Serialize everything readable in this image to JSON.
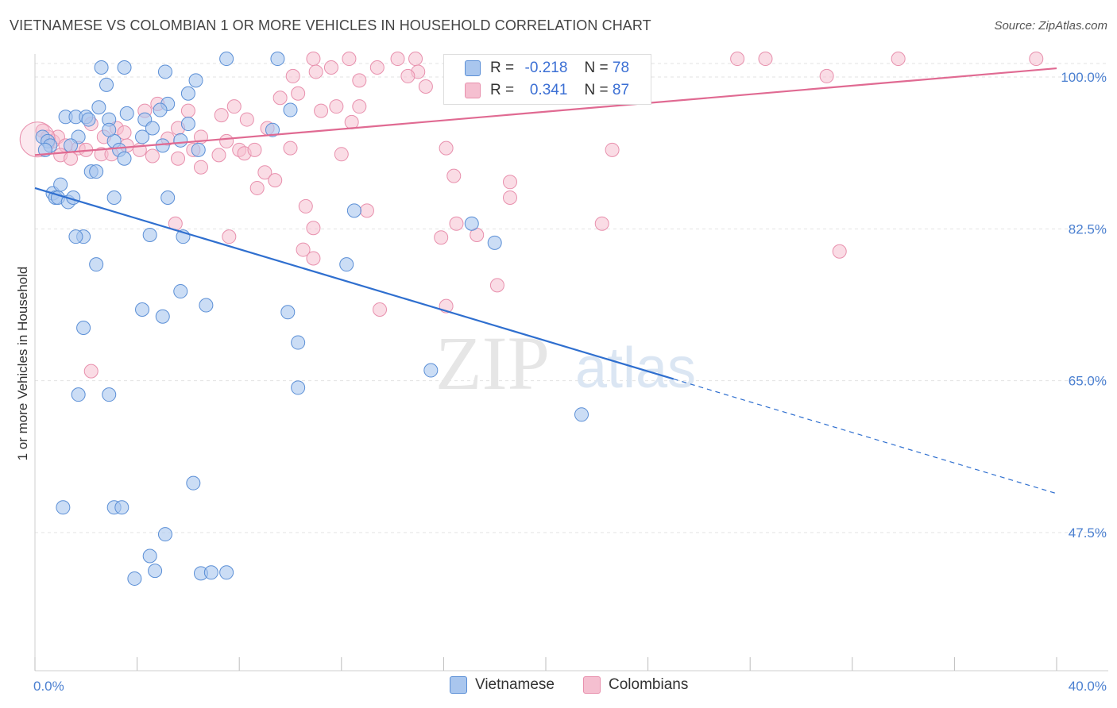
{
  "header": {
    "title": "VIETNAMESE VS COLOMBIAN 1 OR MORE VEHICLES IN HOUSEHOLD CORRELATION CHART",
    "source": "Source: ZipAtlas.com"
  },
  "watermark": {
    "zip": "ZIP",
    "atlas": "atlas"
  },
  "legend_top": {
    "rows": [
      {
        "r_label": "R =",
        "r_value": "-0.218",
        "n_label": "N =",
        "n_value": "78"
      },
      {
        "r_label": "R =",
        "r_value": "0.341",
        "n_label": "N =",
        "n_value": "87"
      }
    ]
  },
  "legend_bottom": {
    "vietnamese": "Vietnamese",
    "colombians": "Colombians"
  },
  "colors": {
    "vietnamese_fill": "#a9c6ee",
    "vietnamese_stroke": "#5b8fd6",
    "vietnamese_line": "#2f6fcf",
    "colombians_fill": "#f5bfd0",
    "colombians_stroke": "#e890ad",
    "colombians_line": "#e06a92",
    "tick_text": "#4a7fd0",
    "grid": "#e3e3e3"
  },
  "chart_data": {
    "type": "scatter",
    "title": "VIETNAMESE VS COLOMBIAN 1 OR MORE VEHICLES IN HOUSEHOLD CORRELATION CHART",
    "xlabel": "",
    "ylabel": "1 or more Vehicles in Household",
    "xlim": [
      0,
      40
    ],
    "ylim": [
      33,
      102
    ],
    "x_tick_labels": [
      "0.0%",
      "40.0%"
    ],
    "y_ticks": [
      100,
      82.5,
      65,
      47.5
    ],
    "y_tick_labels": [
      "100.0%",
      "82.5%",
      "65.0%",
      "47.5%"
    ],
    "grid": true,
    "legend_position": "top-center",
    "series": [
      {
        "name": "Vietnamese",
        "r": -0.218,
        "n": 78,
        "trend": {
          "x": [
            0,
            25,
            40
          ],
          "y": [
            87.2,
            65.2,
            52.0
          ],
          "solid_until_x": 25
        },
        "points": [
          [
            0.3,
            93.1
          ],
          [
            0.5,
            92.6
          ],
          [
            0.6,
            92.1
          ],
          [
            0.4,
            91.6
          ],
          [
            0.7,
            86.6
          ],
          [
            0.8,
            86.1
          ],
          [
            1.0,
            87.6
          ],
          [
            0.9,
            86.1
          ],
          [
            1.3,
            85.6
          ],
          [
            1.5,
            86.1
          ],
          [
            1.2,
            95.4
          ],
          [
            1.6,
            95.4
          ],
          [
            2.0,
            95.4
          ],
          [
            2.1,
            95.1
          ],
          [
            1.7,
            93.1
          ],
          [
            1.4,
            92.1
          ],
          [
            2.2,
            89.1
          ],
          [
            2.6,
            101.1
          ],
          [
            2.8,
            99.1
          ],
          [
            3.5,
            101.1
          ],
          [
            2.5,
            96.5
          ],
          [
            2.9,
            95.1
          ],
          [
            3.6,
            95.8
          ],
          [
            4.3,
            95.1
          ],
          [
            4.6,
            94.1
          ],
          [
            5.2,
            96.9
          ],
          [
            4.9,
            96.2
          ],
          [
            6.0,
            98.1
          ],
          [
            5.1,
            100.6
          ],
          [
            6.3,
            99.6
          ],
          [
            6.0,
            94.6
          ],
          [
            5.7,
            92.7
          ],
          [
            5.0,
            92.1
          ],
          [
            6.4,
            91.6
          ],
          [
            4.2,
            93.1
          ],
          [
            3.1,
            92.6
          ],
          [
            2.9,
            93.9
          ],
          [
            3.3,
            91.6
          ],
          [
            3.5,
            90.6
          ],
          [
            2.4,
            89.1
          ],
          [
            7.5,
            102.1
          ],
          [
            9.5,
            102.1
          ],
          [
            9.3,
            93.9
          ],
          [
            10.0,
            96.2
          ],
          [
            1.9,
            81.6
          ],
          [
            1.6,
            81.6
          ],
          [
            4.5,
            81.8
          ],
          [
            5.8,
            81.6
          ],
          [
            3.1,
            86.1
          ],
          [
            5.2,
            86.1
          ],
          [
            12.5,
            84.6
          ],
          [
            17.1,
            83.1
          ],
          [
            18.0,
            80.9
          ],
          [
            12.2,
            78.4
          ],
          [
            2.4,
            78.4
          ],
          [
            4.2,
            73.2
          ],
          [
            5.0,
            72.4
          ],
          [
            5.7,
            75.3
          ],
          [
            6.7,
            73.7
          ],
          [
            9.9,
            72.9
          ],
          [
            1.9,
            71.1
          ],
          [
            10.3,
            69.4
          ],
          [
            15.5,
            66.2
          ],
          [
            10.3,
            64.2
          ],
          [
            1.7,
            63.4
          ],
          [
            2.9,
            63.4
          ],
          [
            21.4,
            61.1
          ],
          [
            6.2,
            53.2
          ],
          [
            1.1,
            50.4
          ],
          [
            3.1,
            50.4
          ],
          [
            3.4,
            50.4
          ],
          [
            5.1,
            47.3
          ],
          [
            4.5,
            44.8
          ],
          [
            4.7,
            43.1
          ],
          [
            3.9,
            42.2
          ],
          [
            6.5,
            42.8
          ],
          [
            6.9,
            42.9
          ],
          [
            7.5,
            42.9
          ]
        ]
      },
      {
        "name": "Colombians",
        "r": 0.341,
        "n": 87,
        "trend": {
          "x": [
            0,
            40
          ],
          "y": [
            91.0,
            101.0
          ]
        },
        "points": [
          [
            0.3,
            93.8
          ],
          [
            0.5,
            93.1
          ],
          [
            0.7,
            92.6
          ],
          [
            0.9,
            93.1
          ],
          [
            1.2,
            92.1
          ],
          [
            1.0,
            91.0
          ],
          [
            1.7,
            91.8
          ],
          [
            1.4,
            90.6
          ],
          [
            2.0,
            91.6
          ],
          [
            2.6,
            91.1
          ],
          [
            3.0,
            91.1
          ],
          [
            3.6,
            92.1
          ],
          [
            4.1,
            91.6
          ],
          [
            4.6,
            90.9
          ],
          [
            5.2,
            92.9
          ],
          [
            5.6,
            90.6
          ],
          [
            6.2,
            91.6
          ],
          [
            6.5,
            89.6
          ],
          [
            7.2,
            91.0
          ],
          [
            7.5,
            92.6
          ],
          [
            8.0,
            91.6
          ],
          [
            8.2,
            91.2
          ],
          [
            8.6,
            91.6
          ],
          [
            9.0,
            89.0
          ],
          [
            2.2,
            94.6
          ],
          [
            2.7,
            93.1
          ],
          [
            3.2,
            94.1
          ],
          [
            3.5,
            93.6
          ],
          [
            4.3,
            96.1
          ],
          [
            4.8,
            96.9
          ],
          [
            5.6,
            94.1
          ],
          [
            6.0,
            96.1
          ],
          [
            6.5,
            93.1
          ],
          [
            7.3,
            95.6
          ],
          [
            7.8,
            96.6
          ],
          [
            8.3,
            95.1
          ],
          [
            9.1,
            94.1
          ],
          [
            9.6,
            97.6
          ],
          [
            10.1,
            100.1
          ],
          [
            10.3,
            98.1
          ],
          [
            10.9,
            102.1
          ],
          [
            11.0,
            100.6
          ],
          [
            11.6,
            101.1
          ],
          [
            11.8,
            96.6
          ],
          [
            12.3,
            102.1
          ],
          [
            12.7,
            99.6
          ],
          [
            13.4,
            101.1
          ],
          [
            14.2,
            102.1
          ],
          [
            14.9,
            102.1
          ],
          [
            15.0,
            100.6
          ],
          [
            15.3,
            98.9
          ],
          [
            16.1,
            91.8
          ],
          [
            16.4,
            88.6
          ],
          [
            12.4,
            94.8
          ],
          [
            12.7,
            96.6
          ],
          [
            11.2,
            96.1
          ],
          [
            10.0,
            91.8
          ],
          [
            9.4,
            88.1
          ],
          [
            8.7,
            87.2
          ],
          [
            5.5,
            83.1
          ],
          [
            10.6,
            85.1
          ],
          [
            10.9,
            82.6
          ],
          [
            10.9,
            79.1
          ],
          [
            10.5,
            80.1
          ],
          [
            13.0,
            84.6
          ],
          [
            15.9,
            81.5
          ],
          [
            16.5,
            83.1
          ],
          [
            17.3,
            81.8
          ],
          [
            18.6,
            86.1
          ],
          [
            18.6,
            87.9
          ],
          [
            22.2,
            83.1
          ],
          [
            22.6,
            91.6
          ],
          [
            22.8,
            101.1
          ],
          [
            23.3,
            100.1
          ],
          [
            27.5,
            102.1
          ],
          [
            28.6,
            102.1
          ],
          [
            31.0,
            100.1
          ],
          [
            33.8,
            102.1
          ],
          [
            39.2,
            102.1
          ],
          [
            31.5,
            79.9
          ],
          [
            14.6,
            100.1
          ],
          [
            12.0,
            91.1
          ],
          [
            7.6,
            81.6
          ],
          [
            13.5,
            73.2
          ],
          [
            2.2,
            66.1
          ],
          [
            16.1,
            73.6
          ],
          [
            18.1,
            76.0
          ]
        ]
      }
    ]
  },
  "y_axis_label": "1 or more Vehicles in Household"
}
